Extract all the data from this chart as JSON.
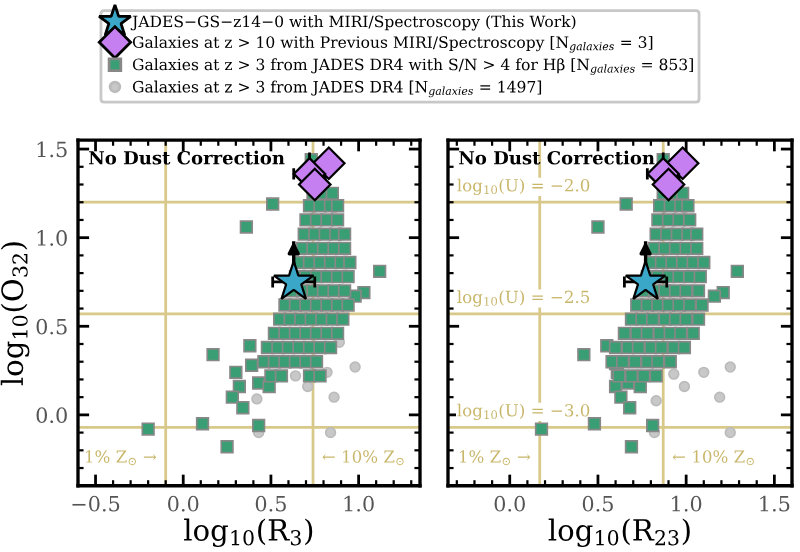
{
  "chart_data": [
    {
      "type": "scatter",
      "xlabel": "log$_{10}$(R$_{3}$)",
      "ylabel": "log$_{10}$(O$_{32}$)",
      "annotations": [
        "No Dust Correction"
      ],
      "xlim": [
        -0.6,
        1.35
      ],
      "ylim": [
        -0.4,
        1.55
      ],
      "xticks": [
        {
          "value": -0.5,
          "label": "−0.5"
        },
        {
          "value": 0,
          "label": "0.0"
        },
        {
          "value": 0.5,
          "label": "0.5"
        },
        {
          "value": 1,
          "label": "1.0"
        }
      ],
      "yticks": [
        {
          "value": 0,
          "label": "0.0"
        },
        {
          "value": 0.5,
          "label": "0.5"
        },
        {
          "value": 1,
          "label": "1.0"
        },
        {
          "value": 1.5,
          "label": "1.5"
        }
      ],
      "legend": "top",
      "ref_lines": [
        {
          "axis": "x",
          "value": -0.1,
          "label": "1% Z$_{⊙}$ →",
          "color": "#d8c98a"
        },
        {
          "axis": "x",
          "value": 0.74,
          "label": "← 10% Z$_{⊙}$",
          "color": "#d8c98a"
        },
        {
          "axis": "y",
          "value": 1.2,
          "color": "#d8c98a"
        },
        {
          "axis": "y",
          "value": 0.57,
          "color": "#d8c98a"
        },
        {
          "axis": "y",
          "value": -0.07,
          "color": "#d8c98a"
        }
      ],
      "series": [
        {
          "name": "JADES−GS−z14−0 with MIRI/Spectroscopy (This Work)",
          "marker": "star",
          "color": "#3aa6c8",
          "x": [
            0.63
          ],
          "values": [
            0.75
          ],
          "xerrors": [
            0.12
          ],
          "errors": [
            [
              0.75,
              0.98
            ]
          ]
        },
        {
          "name": "Galaxies at z > 10 with Previous MIRI/Spectroscopy [N$_{galaxies}$ = 3]",
          "marker": "diamond",
          "color": "#c57ff0",
          "x": [
            0.83,
            0.72,
            0.75
          ],
          "values": [
            1.42,
            1.36,
            1.3
          ],
          "xerrors": [
            null,
            0.09,
            null
          ],
          "errors": [
            null,
            0.12,
            null
          ]
        },
        {
          "name": "Galaxies at z > 3 from JADES DR4 with S/N > 4 for Hβ [N$_{galaxies}$ = 853]",
          "marker": "square",
          "color": "#3a9e74",
          "x": [
            0.73,
            0.51,
            0.36,
            1.12,
            1.03,
            0.98,
            0.17,
            0.38,
            0.3,
            0.39,
            0.32,
            0.28,
            0.34,
            0.43,
            0.49,
            -0.2,
            0.11,
            0.43,
            0.25,
            0.74,
            0.8,
            0.85,
            0.72,
            0.78,
            0.84,
            0.88,
            0.7,
            0.76,
            0.82,
            0.88,
            0.69,
            0.75,
            0.81,
            0.87,
            0.92,
            0.68,
            0.74,
            0.8,
            0.86,
            0.92,
            0.66,
            0.72,
            0.78,
            0.84,
            0.9,
            0.95,
            0.64,
            0.7,
            0.76,
            0.82,
            0.88,
            0.94,
            0.62,
            0.68,
            0.74,
            0.8,
            0.86,
            0.92,
            0.58,
            0.64,
            0.7,
            0.76,
            0.82,
            0.88,
            0.94,
            0.55,
            0.61,
            0.67,
            0.73,
            0.79,
            0.85,
            0.91,
            0.52,
            0.58,
            0.64,
            0.7,
            0.76,
            0.82,
            0.88,
            0.48,
            0.54,
            0.6,
            0.66,
            0.72,
            0.78,
            0.84,
            0.46,
            0.52,
            0.58,
            0.64,
            0.7,
            0.76,
            0.5,
            0.56,
            0.72,
            0.78
          ],
          "values": [
            1.44,
            1.19,
            1.06,
            0.81,
            0.69,
            0.67,
            0.34,
            0.39,
            0.24,
            0.28,
            0.16,
            0.1,
            0.04,
            0.18,
            0.16,
            -0.08,
            -0.05,
            -0.06,
            -0.18,
            1.25,
            1.25,
            1.25,
            1.18,
            1.18,
            1.18,
            1.18,
            1.1,
            1.1,
            1.1,
            1.1,
            1.02,
            1.02,
            1.02,
            1.02,
            1.02,
            0.94,
            0.94,
            0.94,
            0.94,
            0.94,
            0.86,
            0.86,
            0.86,
            0.86,
            0.86,
            0.86,
            0.78,
            0.78,
            0.78,
            0.78,
            0.78,
            0.78,
            0.7,
            0.7,
            0.7,
            0.7,
            0.7,
            0.7,
            0.62,
            0.62,
            0.62,
            0.62,
            0.62,
            0.62,
            0.62,
            0.54,
            0.54,
            0.54,
            0.54,
            0.54,
            0.54,
            0.54,
            0.46,
            0.46,
            0.46,
            0.46,
            0.46,
            0.46,
            0.46,
            0.38,
            0.38,
            0.38,
            0.38,
            0.38,
            0.38,
            0.38,
            0.3,
            0.3,
            0.3,
            0.3,
            0.3,
            0.3,
            0.22,
            0.22,
            0.22,
            0.22
          ]
        },
        {
          "name": "Galaxies at z > 3 from JADES DR4 [N$_{galaxies}$ = 1497]",
          "marker": "circle",
          "color": "#c8c8c8",
          "x": [
            0.89,
            0.82,
            0.98,
            0.71,
            0.86,
            0.42,
            0.84,
            0.43,
            0.64
          ],
          "values": [
            0.41,
            0.24,
            0.27,
            0.16,
            0.1,
            0.09,
            -0.1,
            -0.1,
            0.22
          ]
        }
      ]
    },
    {
      "type": "scatter",
      "xlabel": "log$_{10}$(R$_{23}$)",
      "annotations": [
        "No Dust Correction",
        {
          "text": "log$_{10}$(U) = −2.0",
          "y": 1.2
        },
        {
          "text": "log$_{10}$(U) = −2.5",
          "y": 0.57
        },
        {
          "text": "log$_{10}$(U) = −3.0",
          "y": -0.07
        }
      ],
      "xlim": [
        -0.35,
        1.6
      ],
      "ylim": [
        -0.4,
        1.55
      ],
      "xticks": [
        {
          "value": 0,
          "label": "0.0"
        },
        0.5,
        {
          "value": 1,
          "label": "1.0"
        },
        1.5
      ],
      "yticks": [
        {
          "value": 0,
          "label": null
        },
        {
          "value": 0.5,
          "label": null
        },
        {
          "value": 1,
          "label": null
        },
        {
          "value": 1.5,
          "label": null
        }
      ],
      "tick_labels": "x",
      "ref_lines": [
        {
          "axis": "x",
          "value": 0.17,
          "label": "1% Z$_{⊙}$ →",
          "color": "#d8c98a"
        },
        {
          "axis": "x",
          "value": 0.87,
          "label": "← 10% Z$_{⊙}$",
          "color": "#d8c98a"
        },
        {
          "axis": "y",
          "value": 1.2,
          "color": "#d8c98a"
        },
        {
          "axis": "y",
          "value": 0.57,
          "color": "#d8c98a"
        },
        {
          "axis": "y",
          "value": -0.07,
          "color": "#d8c98a"
        }
      ],
      "series": [
        {
          "marker": "star",
          "color": "#3aa6c8",
          "x": [
            0.77
          ],
          "values": [
            0.75
          ],
          "xerrors": [
            0.12
          ],
          "errors": [
            [
              0.75,
              0.98
            ]
          ]
        },
        {
          "marker": "diamond",
          "color": "#c57ff0",
          "x": [
            0.98,
            0.87,
            0.9
          ],
          "values": [
            1.42,
            1.36,
            1.3
          ],
          "xerrors": [
            null,
            0.09,
            null
          ],
          "errors": [
            null,
            0.12,
            null
          ]
        },
        {
          "marker": "square",
          "color": "#3a9e74",
          "x": [
            0.87,
            0.66,
            0.5,
            1.29,
            1.21,
            1.16,
            0.42,
            0.55,
            0.61,
            0.6,
            0.6,
            0.63,
            0.68,
            0.67,
            0.74,
            0.18,
            0.48,
            0.81,
            0.69,
            0.87,
            0.93,
            0.98,
            0.85,
            0.91,
            0.97,
            1.01,
            0.84,
            0.9,
            0.96,
            1.02,
            0.83,
            0.89,
            0.95,
            1.01,
            1.06,
            0.82,
            0.88,
            0.94,
            1.0,
            1.06,
            0.8,
            0.86,
            0.92,
            0.98,
            1.04,
            1.1,
            0.78,
            0.84,
            0.9,
            0.96,
            1.02,
            1.08,
            0.76,
            0.82,
            0.88,
            0.94,
            1.0,
            1.07,
            0.72,
            0.78,
            0.84,
            0.9,
            0.96,
            1.02,
            1.09,
            0.69,
            0.75,
            0.81,
            0.88,
            0.94,
            1.0,
            1.07,
            0.65,
            0.72,
            0.78,
            0.85,
            0.91,
            0.97,
            1.04,
            0.6,
            0.67,
            0.73,
            0.8,
            0.86,
            0.93,
            0.99,
            0.58,
            0.64,
            0.71,
            0.78,
            0.84,
            0.91,
            0.62,
            0.69,
            0.76,
            0.83
          ],
          "values": [
            1.44,
            1.19,
            1.06,
            0.81,
            0.69,
            0.67,
            0.34,
            0.39,
            0.24,
            0.29,
            0.16,
            0.1,
            0.04,
            0.18,
            0.16,
            -0.08,
            -0.05,
            -0.06,
            -0.18,
            1.25,
            1.25,
            1.25,
            1.18,
            1.18,
            1.18,
            1.18,
            1.1,
            1.1,
            1.1,
            1.1,
            1.02,
            1.02,
            1.02,
            1.02,
            1.02,
            0.94,
            0.94,
            0.94,
            0.94,
            0.94,
            0.86,
            0.86,
            0.86,
            0.86,
            0.86,
            0.86,
            0.78,
            0.78,
            0.78,
            0.78,
            0.78,
            0.78,
            0.7,
            0.7,
            0.7,
            0.7,
            0.7,
            0.7,
            0.62,
            0.62,
            0.62,
            0.62,
            0.62,
            0.62,
            0.62,
            0.54,
            0.54,
            0.54,
            0.54,
            0.54,
            0.54,
            0.54,
            0.46,
            0.46,
            0.46,
            0.46,
            0.46,
            0.46,
            0.46,
            0.38,
            0.38,
            0.38,
            0.38,
            0.38,
            0.38,
            0.38,
            0.3,
            0.3,
            0.3,
            0.3,
            0.3,
            0.3,
            0.22,
            0.22,
            0.22,
            0.22
          ]
        },
        {
          "marker": "circle",
          "color": "#c8c8c8",
          "x": [
            1.1,
            1.25,
            0.99,
            1.19,
            0.83,
            1.25,
            0.93,
            0.82
          ],
          "values": [
            0.24,
            0.27,
            0.16,
            0.1,
            0.08,
            -0.1,
            0.23,
            -0.1
          ]
        }
      ]
    }
  ]
}
